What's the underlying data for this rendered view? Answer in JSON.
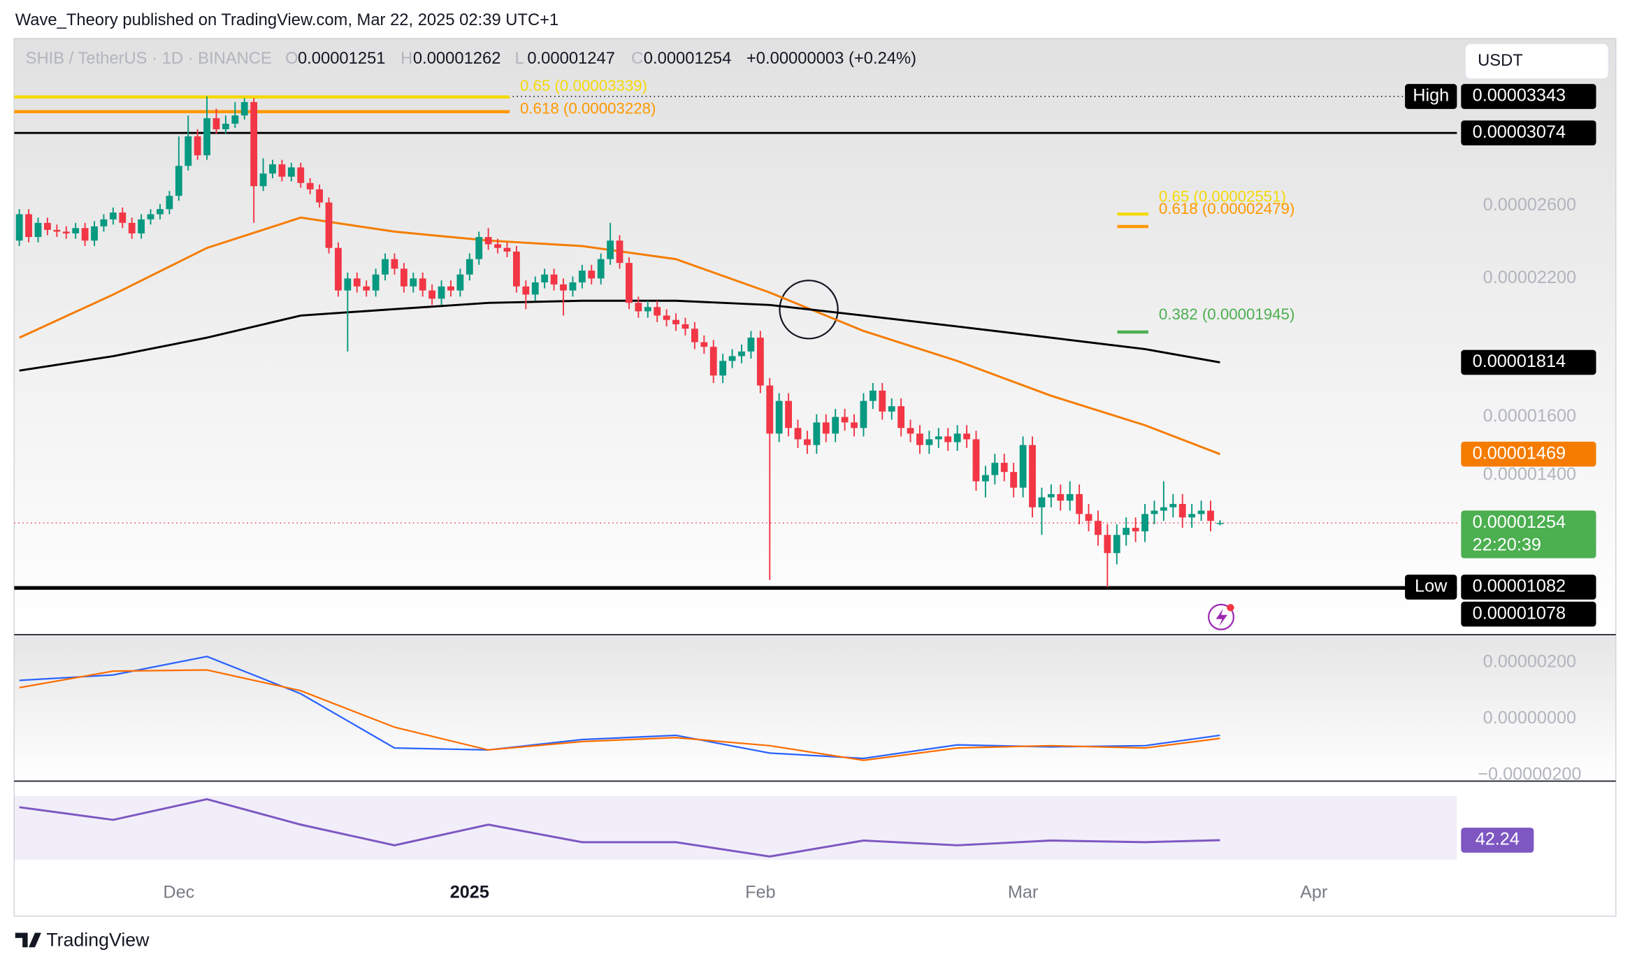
{
  "header": {
    "author_line": "Wave_Theory published on TradingView.com, Mar 22, 2025 02:39 UTC+1",
    "symbol": "SHIB / TetherUS · 1D · BINANCE",
    "ohlc": [
      {
        "key": "O",
        "value": "0.00001251"
      },
      {
        "key": "H",
        "value": "0.00001262"
      },
      {
        "key": "L",
        "value": "0.00001247"
      },
      {
        "key": "C",
        "value": "0.00001254"
      }
    ],
    "change": "+0.00000003 (+0.24%)",
    "currency": "USDT",
    "brand": "TradingView"
  },
  "chart_data": [
    {
      "type": "candlestick",
      "log_scale": true,
      "up_color": "#089981",
      "down_color": "#f23645",
      "ylim": [
        9.7e-06,
        3.82e-05
      ],
      "xlim": [
        -0.55,
        170.2
      ],
      "yticks": [
        {
          "value": 2.6e-05,
          "label": "0.00002600"
        },
        {
          "value": 2.2e-05,
          "label": "0.00002200"
        },
        {
          "value": 1.6e-05,
          "label": "0.00001600"
        },
        {
          "value": 1.4e-05,
          "label": "0.00001400"
        }
      ],
      "xticks": [
        {
          "value": 17,
          "label": "Dec"
        },
        {
          "value": 48,
          "label": "2025",
          "bold": true
        },
        {
          "value": 79,
          "label": "Feb"
        },
        {
          "value": 107,
          "label": "Mar"
        },
        {
          "value": 138,
          "label": "Apr"
        }
      ],
      "open": [
        2.4e-05,
        2.55e-05,
        2.42e-05,
        2.5e-05,
        2.46e-05,
        2.45e-05,
        2.44e-05,
        2.47e-05,
        2.4e-05,
        2.48e-05,
        2.52e-05,
        2.56e-05,
        2.5e-05,
        2.44e-05,
        2.52e-05,
        2.55e-05,
        2.58e-05,
        2.66e-05,
        2.85e-05,
        3.05e-05,
        2.92e-05,
        3.18e-05,
        3.1e-05,
        3.14e-05,
        3.2e-05,
        3.3e-05,
        2.72e-05,
        2.8e-05,
        2.86e-05,
        2.78e-05,
        2.84e-05,
        2.74e-05,
        2.7e-05,
        2.62e-05,
        2.36e-05,
        2.14e-05,
        2.2e-05,
        2.16e-05,
        2.14e-05,
        2.22e-05,
        2.3e-05,
        2.25e-05,
        2.16e-05,
        2.2e-05,
        2.14e-05,
        2.1e-05,
        2.16e-05,
        2.14e-05,
        2.22e-05,
        2.3e-05,
        2.42e-05,
        2.38e-05,
        2.36e-05,
        2.34e-05,
        2.16e-05,
        2.12e-05,
        2.18e-05,
        2.22e-05,
        2.17e-05,
        2.14e-05,
        2.18e-05,
        2.24e-05,
        2.2e-05,
        2.3e-05,
        2.4e-05,
        2.28e-05,
        2.08e-05,
        2.04e-05,
        2.06e-05,
        2.02e-05,
        2e-05,
        1.98e-05,
        1.96e-05,
        1.9e-05,
        1.88e-05,
        1.76e-05,
        1.82e-05,
        1.84e-05,
        1.86e-05,
        1.92e-05,
        1.72e-05,
        1.54e-05,
        1.66e-05,
        1.56e-05,
        1.52e-05,
        1.5e-05,
        1.58e-05,
        1.54e-05,
        1.6e-05,
        1.58e-05,
        1.56e-05,
        1.66e-05,
        1.7e-05,
        1.62e-05,
        1.64e-05,
        1.56e-05,
        1.54e-05,
        1.5e-05,
        1.52e-05,
        1.53e-05,
        1.51e-05,
        1.54e-05,
        1.52e-05,
        1.38e-05,
        1.4e-05,
        1.44e-05,
        1.41e-05,
        1.36e-05,
        1.5e-05,
        1.3e-05,
        1.33e-05,
        1.34e-05,
        1.32e-05,
        1.34e-05,
        1.28e-05,
        1.26e-05,
        1.22e-05,
        1.17e-05,
        1.22e-05,
        1.24e-05,
        1.23e-05,
        1.28e-05,
        1.29e-05,
        1.3e-05,
        1.31e-05,
        1.27e-05,
        1.28e-05,
        1.29e-05,
        1.251e-05
      ],
      "high": [
        2.58e-05,
        2.58e-05,
        2.53e-05,
        2.53e-05,
        2.49e-05,
        2.48e-05,
        2.5e-05,
        2.5e-05,
        2.51e-05,
        2.55e-05,
        2.59e-05,
        2.59e-05,
        2.53e-05,
        2.55e-05,
        2.58e-05,
        2.61e-05,
        2.69e-05,
        3.05e-05,
        3.2e-05,
        3.1e-05,
        3.343e-05,
        3.25e-05,
        3.2e-05,
        3.3e-05,
        3.33e-05,
        3.33e-05,
        2.9e-05,
        2.89e-05,
        2.89e-05,
        2.87e-05,
        2.87e-05,
        2.77e-05,
        2.73e-05,
        2.65e-05,
        2.39e-05,
        2.23e-05,
        2.23e-05,
        2.19e-05,
        2.25e-05,
        2.33e-05,
        2.33e-05,
        2.28e-05,
        2.23e-05,
        2.23e-05,
        2.17e-05,
        2.19e-05,
        2.19e-05,
        2.25e-05,
        2.33e-05,
        2.45e-05,
        2.47e-05,
        2.41e-05,
        2.39e-05,
        2.37e-05,
        2.19e-05,
        2.21e-05,
        2.25e-05,
        2.25e-05,
        2.2e-05,
        2.21e-05,
        2.27e-05,
        2.27e-05,
        2.33e-05,
        2.5e-05,
        2.43e-05,
        2.31e-05,
        2.11e-05,
        2.09e-05,
        2.09e-05,
        2.05e-05,
        2.03e-05,
        2.01e-05,
        1.99e-05,
        1.93e-05,
        1.91e-05,
        1.85e-05,
        1.87e-05,
        1.89e-05,
        1.95e-05,
        1.95e-05,
        1.75e-05,
        1.69e-05,
        1.69e-05,
        1.59e-05,
        1.55e-05,
        1.61e-05,
        1.61e-05,
        1.63e-05,
        1.63e-05,
        1.61e-05,
        1.69e-05,
        1.73e-05,
        1.73e-05,
        1.67e-05,
        1.67e-05,
        1.59e-05,
        1.57e-05,
        1.55e-05,
        1.56e-05,
        1.56e-05,
        1.57e-05,
        1.57e-05,
        1.55e-05,
        1.43e-05,
        1.47e-05,
        1.47e-05,
        1.44e-05,
        1.53e-05,
        1.53e-05,
        1.36e-05,
        1.37e-05,
        1.37e-05,
        1.38e-05,
        1.37e-05,
        1.31e-05,
        1.29e-05,
        1.25e-05,
        1.25e-05,
        1.27e-05,
        1.27e-05,
        1.31e-05,
        1.32e-05,
        1.38e-05,
        1.34e-05,
        1.34e-05,
        1.31e-05,
        1.32e-05,
        1.32e-05,
        1.262e-05
      ],
      "low": [
        2.37e-05,
        2.39e-05,
        2.39e-05,
        2.43e-05,
        2.42e-05,
        2.41e-05,
        2.41e-05,
        2.37e-05,
        2.37e-05,
        2.45e-05,
        2.49e-05,
        2.47e-05,
        2.41e-05,
        2.41e-05,
        2.49e-05,
        2.52e-05,
        2.55e-05,
        2.63e-05,
        2.82e-05,
        2.89e-05,
        2.89e-05,
        3.07e-05,
        3.07e-05,
        3.11e-05,
        3.17e-05,
        2.5e-05,
        2.69e-05,
        2.77e-05,
        2.75e-05,
        2.75e-05,
        2.71e-05,
        2.67e-05,
        2.59e-05,
        2.33e-05,
        2.11e-05,
        1.86e-05,
        2.13e-05,
        2.11e-05,
        2.11e-05,
        2.19e-05,
        2.22e-05,
        2.13e-05,
        2.13e-05,
        2.11e-05,
        2.07e-05,
        2.07e-05,
        2.11e-05,
        2.11e-05,
        2.19e-05,
        2.27e-05,
        2.35e-05,
        2.33e-05,
        2.31e-05,
        2.13e-05,
        2.05e-05,
        2.09e-05,
        2.15e-05,
        2.14e-05,
        2.02e-05,
        2.11e-05,
        2.15e-05,
        2.17e-05,
        2.17e-05,
        2.27e-05,
        2.25e-05,
        2.05e-05,
        2.01e-05,
        2.01e-05,
        1.99e-05,
        1.97e-05,
        1.95e-05,
        1.93e-05,
        1.87e-05,
        1.85e-05,
        1.73e-05,
        1.73e-05,
        1.79e-05,
        1.81e-05,
        1.83e-05,
        1.69e-05,
        1.1e-05,
        1.51e-05,
        1.53e-05,
        1.49e-05,
        1.47e-05,
        1.47e-05,
        1.51e-05,
        1.51e-05,
        1.55e-05,
        1.53e-05,
        1.53e-05,
        1.63e-05,
        1.59e-05,
        1.59e-05,
        1.53e-05,
        1.51e-05,
        1.47e-05,
        1.47e-05,
        1.49e-05,
        1.48e-05,
        1.48e-05,
        1.49e-05,
        1.35e-05,
        1.33e-05,
        1.37e-05,
        1.38e-05,
        1.33e-05,
        1.33e-05,
        1.27e-05,
        1.22e-05,
        1.3e-05,
        1.29e-05,
        1.29e-05,
        1.25e-05,
        1.23e-05,
        1.19e-05,
        1.082e-05,
        1.14e-05,
        1.19e-05,
        1.2e-05,
        1.2e-05,
        1.25e-05,
        1.26e-05,
        1.27e-05,
        1.24e-05,
        1.24e-05,
        1.26e-05,
        1.23e-05,
        1.247e-05
      ],
      "close": [
        2.55e-05,
        2.42e-05,
        2.5e-05,
        2.46e-05,
        2.45e-05,
        2.44e-05,
        2.47e-05,
        2.4e-05,
        2.48e-05,
        2.52e-05,
        2.56e-05,
        2.5e-05,
        2.44e-05,
        2.52e-05,
        2.55e-05,
        2.58e-05,
        2.66e-05,
        2.85e-05,
        3.05e-05,
        2.92e-05,
        3.18e-05,
        3.1e-05,
        3.14e-05,
        3.2e-05,
        3.3e-05,
        2.72e-05,
        2.8e-05,
        2.86e-05,
        2.78e-05,
        2.84e-05,
        2.74e-05,
        2.7e-05,
        2.62e-05,
        2.36e-05,
        2.14e-05,
        2.2e-05,
        2.16e-05,
        2.14e-05,
        2.22e-05,
        2.3e-05,
        2.25e-05,
        2.16e-05,
        2.2e-05,
        2.14e-05,
        2.1e-05,
        2.16e-05,
        2.14e-05,
        2.22e-05,
        2.3e-05,
        2.42e-05,
        2.38e-05,
        2.36e-05,
        2.34e-05,
        2.16e-05,
        2.12e-05,
        2.18e-05,
        2.22e-05,
        2.17e-05,
        2.14e-05,
        2.18e-05,
        2.24e-05,
        2.2e-05,
        2.3e-05,
        2.4e-05,
        2.28e-05,
        2.08e-05,
        2.04e-05,
        2.06e-05,
        2.02e-05,
        2e-05,
        1.98e-05,
        1.96e-05,
        1.9e-05,
        1.88e-05,
        1.76e-05,
        1.82e-05,
        1.84e-05,
        1.86e-05,
        1.92e-05,
        1.72e-05,
        1.54e-05,
        1.66e-05,
        1.56e-05,
        1.52e-05,
        1.5e-05,
        1.58e-05,
        1.54e-05,
        1.6e-05,
        1.58e-05,
        1.56e-05,
        1.66e-05,
        1.7e-05,
        1.62e-05,
        1.64e-05,
        1.56e-05,
        1.54e-05,
        1.5e-05,
        1.52e-05,
        1.53e-05,
        1.51e-05,
        1.54e-05,
        1.52e-05,
        1.38e-05,
        1.4e-05,
        1.44e-05,
        1.41e-05,
        1.36e-05,
        1.5e-05,
        1.3e-05,
        1.33e-05,
        1.34e-05,
        1.32e-05,
        1.34e-05,
        1.28e-05,
        1.26e-05,
        1.22e-05,
        1.17e-05,
        1.22e-05,
        1.24e-05,
        1.23e-05,
        1.28e-05,
        1.29e-05,
        1.3e-05,
        1.31e-05,
        1.27e-05,
        1.28e-05,
        1.29e-05,
        1.26e-05,
        1.254e-05
      ],
      "series": [
        {
          "color": "#f57c00",
          "x": [
            0,
            10,
            20,
            30,
            40,
            50,
            60,
            70,
            80,
            90,
            100,
            110,
            120,
            128
          ],
          "values": [
            1.92e-05,
            2.12e-05,
            2.36e-05,
            2.53e-05,
            2.45e-05,
            2.4e-05,
            2.37e-05,
            2.3e-05,
            2.13e-05,
            1.95e-05,
            1.82e-05,
            1.68e-05,
            1.57e-05,
            1.469e-05
          ]
        },
        {
          "color": "#000000",
          "x": [
            0,
            10,
            20,
            30,
            40,
            50,
            60,
            70,
            80,
            90,
            100,
            110,
            120,
            128
          ],
          "values": [
            1.78e-05,
            1.84e-05,
            1.92e-05,
            2.02e-05,
            2.05e-05,
            2.08e-05,
            2.09e-05,
            2.09e-05,
            2.07e-05,
            2.02e-05,
            1.97e-05,
            1.92e-05,
            1.87e-05,
            1.814e-05
          ]
        }
      ],
      "levels": [
        {
          "name": "High",
          "value": 3.343e-05,
          "label": "0.00003343",
          "color": "#000000",
          "line": "dotted",
          "line_color": "#000000"
        },
        {
          "value": 3.074e-05,
          "label": "0.00003074",
          "color": "#000000",
          "line": "solid",
          "line_color": "#000000"
        },
        {
          "value": 1.814e-05,
          "label": "0.00001814",
          "color": "#000000",
          "line": "none"
        },
        {
          "value": 1.469e-05,
          "label": "0.00001469",
          "color": "#f57c00",
          "line": "none"
        },
        {
          "value": 1.254e-05,
          "label": "0.00001254",
          "color": "#4caf50",
          "line": "dotted",
          "line_color": "#f23645",
          "countdown": "22:20:39"
        },
        {
          "name": "Low",
          "value": 1.082e-05,
          "label": "0.00001082",
          "color": "#000000",
          "line": "solid",
          "line_color": "#000000"
        },
        {
          "value": 1.078e-05,
          "label": "0.00001078",
          "color": "#000000",
          "line": "solid",
          "line_color": "#000000"
        }
      ],
      "fib_sets": [
        {
          "levels": [
            {
              "value": 3.339e-05,
              "label": "0.65 (0.00003339)",
              "color": "#f5d90a"
            },
            {
              "value": 3.228e-05,
              "label": "0.618 (0.00003228)",
              "color": "#ff9800"
            }
          ]
        },
        {
          "levels": [
            {
              "value": 2.551e-05,
              "label": "0.65 (0.00002551)",
              "color": "#f5d90a"
            },
            {
              "value": 2.479e-05,
              "label": "0.618 (0.00002479)",
              "color": "#ff9800"
            },
            {
              "value": 1.945e-05,
              "label": "0.382 (0.00001945)",
              "color": "#4caf50"
            }
          ]
        }
      ]
    },
    {
      "type": "line",
      "ylim": [
        -2.22e-06,
        2.96e-06
      ],
      "yticks": [
        {
          "value": 2e-06,
          "label": "0.00000200"
        },
        {
          "value": 0,
          "label": "0.00000000"
        },
        {
          "value": -2e-06,
          "label": "−0.00000200"
        }
      ],
      "series": [
        {
          "color": "#2962ff",
          "x": [
            0,
            10,
            20,
            30,
            40,
            50,
            60,
            70,
            80,
            90,
            100,
            110,
            120,
            128
          ],
          "values": [
            1.37e-06,
            1.56e-06,
            2.22e-06,
            8.9e-07,
            -1.04e-06,
            -1.11e-06,
            -7.4e-07,
            -5.9e-07,
            -1.22e-06,
            -1.41e-06,
            -9.3e-07,
            -1e-06,
            -9.6e-07,
            -5.9e-07
          ]
        },
        {
          "color": "#ff6d00",
          "x": [
            0,
            10,
            20,
            30,
            40,
            50,
            60,
            70,
            80,
            90,
            100,
            110,
            120,
            128
          ],
          "values": [
            1.11e-06,
            1.7e-06,
            1.74e-06,
            1e-06,
            -3e-07,
            -1.11e-06,
            -8.1e-07,
            -6.7e-07,
            -9.6e-07,
            -1.48e-06,
            -1.04e-06,
            -9.6e-07,
            -1.04e-06,
            -7e-07
          ]
        }
      ]
    },
    {
      "type": "line",
      "ylim": [
        16.7,
        78.7
      ],
      "band": [
        30,
        70
      ],
      "label_color": "#7e57c2",
      "series": [
        {
          "color": "#7e57c2",
          "x": [
            0,
            10,
            20,
            30,
            40,
            50,
            60,
            70,
            80,
            90,
            100,
            110,
            120,
            128
          ],
          "values": [
            63,
            55,
            68,
            52,
            39,
            52,
            41,
            41,
            32,
            42,
            39,
            42,
            41,
            42.24
          ]
        }
      ]
    }
  ]
}
